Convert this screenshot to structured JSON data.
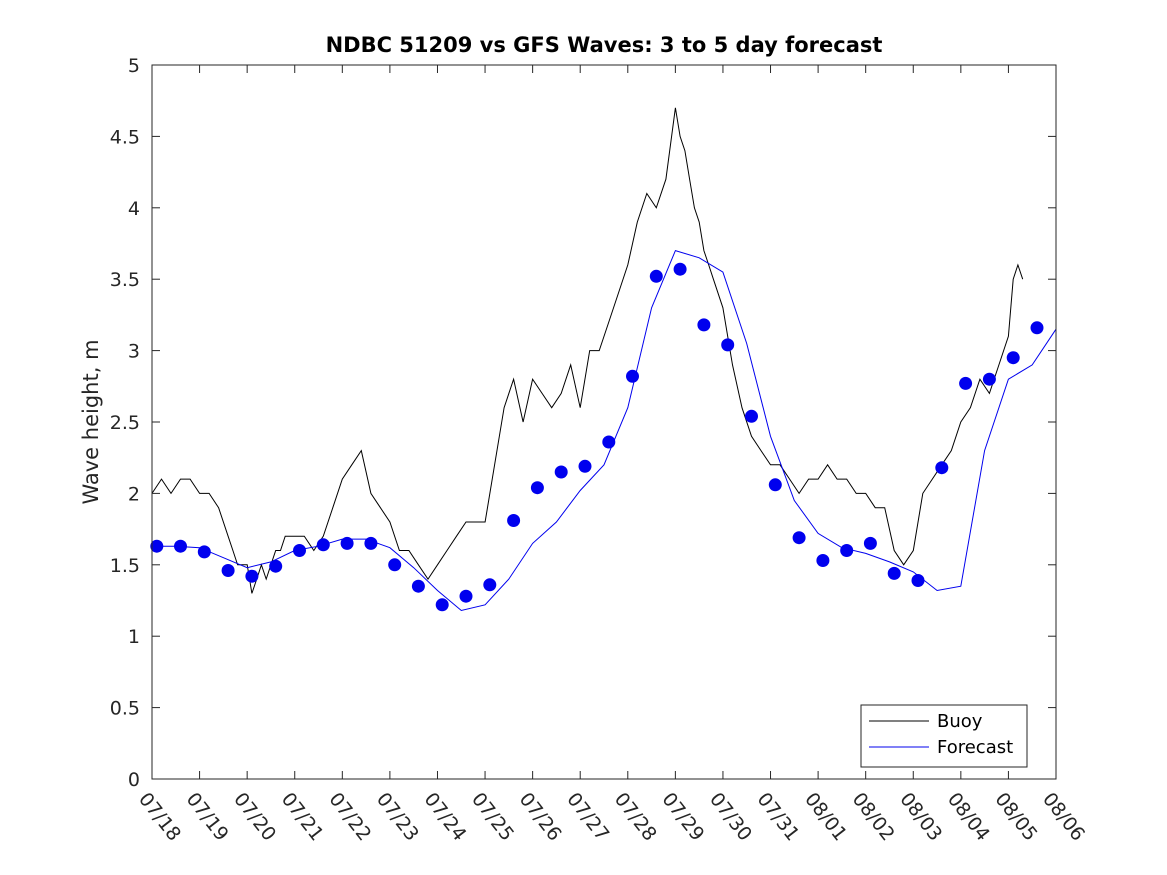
{
  "chart_data": {
    "type": "line",
    "title": "NDBC 51209 vs GFS Waves: 3 to 5 day forecast",
    "xlabel": "",
    "ylabel": "Wave height, m",
    "xlim": [
      0,
      19
    ],
    "ylim": [
      0,
      5
    ],
    "x_unit": "days",
    "x_ticks": [
      0,
      1,
      2,
      3,
      4,
      5,
      6,
      7,
      8,
      9,
      10,
      11,
      12,
      13,
      14,
      15,
      16,
      17,
      18,
      19
    ],
    "x_tick_labels": [
      "07/18",
      "07/19",
      "07/20",
      "07/21",
      "07/22",
      "07/23",
      "07/24",
      "07/25",
      "07/26",
      "07/27",
      "07/28",
      "07/29",
      "07/30",
      "07/31",
      "08/01",
      "08/02",
      "08/03",
      "08/04",
      "08/05",
      "08/06"
    ],
    "y_ticks": [
      0,
      0.5,
      1,
      1.5,
      2,
      2.5,
      3,
      3.5,
      4,
      4.5,
      5
    ],
    "y_tick_labels": [
      "0",
      "0.5",
      "1",
      "1.5",
      "2",
      "2.5",
      "3",
      "3.5",
      "4",
      "4.5",
      "5"
    ],
    "grid": false,
    "legend_position": "bottom-right",
    "series": [
      {
        "name": "Buoy",
        "color": "#000000",
        "style": "line",
        "x": [
          0,
          0.2,
          0.4,
          0.6,
          0.8,
          1,
          1.2,
          1.4,
          1.6,
          1.7,
          1.8,
          2,
          2.1,
          2.2,
          2.3,
          2.4,
          2.5,
          2.6,
          2.7,
          2.8,
          3,
          3.2,
          3.4,
          3.6,
          3.8,
          4,
          4.2,
          4.4,
          4.6,
          4.8,
          5,
          5.2,
          5.4,
          5.6,
          5.8,
          6,
          6.2,
          6.4,
          6.6,
          6.8,
          7,
          7.2,
          7.4,
          7.6,
          7.8,
          8,
          8.2,
          8.4,
          8.6,
          8.8,
          9,
          9.2,
          9.4,
          9.6,
          9.8,
          10,
          10.2,
          10.4,
          10.6,
          10.8,
          11,
          11.1,
          11.2,
          11.3,
          11.4,
          11.5,
          11.6,
          11.7,
          11.8,
          12,
          12.2,
          12.4,
          12.6,
          12.8,
          13,
          13.2,
          13.4,
          13.6,
          13.8,
          14,
          14.2,
          14.4,
          14.6,
          14.8,
          15,
          15.2,
          15.4,
          15.6,
          15.8,
          16,
          16.2,
          16.4,
          16.6,
          16.8,
          17,
          17.2,
          17.4,
          17.6,
          17.8,
          18,
          18.1,
          18.2,
          18.3
        ],
        "y": [
          2.0,
          2.1,
          2.0,
          2.1,
          2.1,
          2.0,
          2.0,
          1.9,
          1.7,
          1.6,
          1.5,
          1.5,
          1.3,
          1.4,
          1.5,
          1.4,
          1.5,
          1.6,
          1.6,
          1.7,
          1.7,
          1.7,
          1.6,
          1.7,
          1.9,
          2.1,
          2.2,
          2.3,
          2.0,
          1.9,
          1.8,
          1.6,
          1.6,
          1.5,
          1.4,
          1.5,
          1.6,
          1.7,
          1.8,
          1.8,
          1.8,
          2.2,
          2.6,
          2.8,
          2.5,
          2.8,
          2.7,
          2.6,
          2.7,
          2.9,
          2.6,
          3.0,
          3.0,
          3.2,
          3.4,
          3.6,
          3.9,
          4.1,
          4.0,
          4.2,
          4.7,
          4.5,
          4.4,
          4.2,
          4.0,
          3.9,
          3.7,
          3.6,
          3.5,
          3.3,
          2.9,
          2.6,
          2.4,
          2.3,
          2.2,
          2.2,
          2.1,
          2.0,
          2.1,
          2.1,
          2.2,
          2.1,
          2.1,
          2.0,
          2.0,
          1.9,
          1.9,
          1.6,
          1.5,
          1.6,
          2.0,
          2.1,
          2.2,
          2.3,
          2.5,
          2.6,
          2.8,
          2.7,
          2.9,
          3.1,
          3.5,
          3.6,
          3.5
        ]
      },
      {
        "name": "Forecast",
        "color": "#0000ee",
        "style": "line",
        "x": [
          0,
          0.5,
          1,
          1.5,
          2,
          2.5,
          3,
          3.5,
          4,
          4.5,
          5,
          5.5,
          6,
          6.5,
          7,
          7.5,
          8,
          8.5,
          9,
          9.5,
          10,
          10.5,
          11,
          11.5,
          12,
          12.5,
          13,
          13.5,
          14,
          14.5,
          15,
          15.5,
          16,
          16.5,
          17,
          17.5,
          18,
          18.5,
          19
        ],
        "y": [
          1.63,
          1.63,
          1.62,
          1.55,
          1.48,
          1.52,
          1.6,
          1.63,
          1.68,
          1.68,
          1.62,
          1.48,
          1.32,
          1.18,
          1.22,
          1.4,
          1.65,
          1.8,
          2.02,
          2.2,
          2.6,
          3.3,
          3.7,
          3.65,
          3.55,
          3.05,
          2.4,
          1.95,
          1.72,
          1.62,
          1.58,
          1.52,
          1.45,
          1.32,
          1.35,
          2.3,
          2.8,
          2.9,
          3.15
        ]
      },
      {
        "name": "",
        "color": "#0000ee",
        "style": "markers",
        "x": [
          0.1,
          0.6,
          1.1,
          1.6,
          2.1,
          2.6,
          3.1,
          3.6,
          4.1,
          4.6,
          5.1,
          5.6,
          6.1,
          6.6,
          7.1,
          7.6,
          8.1,
          8.6,
          9.1,
          9.6,
          10.1,
          10.6,
          11.1,
          11.6,
          12.1,
          12.6,
          13.1,
          13.6,
          14.1,
          14.6,
          15.1,
          15.6,
          16.1,
          16.6,
          17.1,
          17.6,
          18.1,
          18.6
        ],
        "y": [
          1.63,
          1.63,
          1.59,
          1.46,
          1.42,
          1.49,
          1.6,
          1.64,
          1.65,
          1.65,
          1.5,
          1.35,
          1.22,
          1.28,
          1.36,
          1.81,
          2.04,
          2.15,
          2.19,
          2.36,
          2.82,
          3.52,
          3.57,
          3.18,
          3.04,
          2.54,
          2.06,
          1.69,
          1.53,
          1.6,
          1.65,
          1.44,
          1.39,
          2.18,
          2.77,
          2.8,
          2.95,
          3.16
        ]
      }
    ]
  }
}
